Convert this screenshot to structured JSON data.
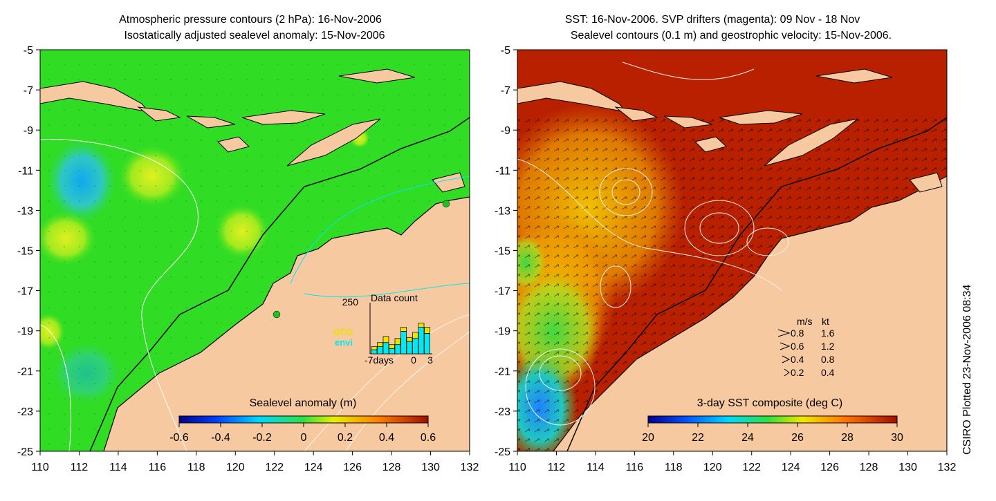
{
  "left_panel": {
    "title_line1": "Atmospheric pressure contours (2 hPa): 16-Nov-2006",
    "title_line2": "Isostatically adjusted sealevel anomaly: 15-Nov-2006",
    "y_ticks": [
      "-5",
      "-7",
      "-9",
      "-11",
      "-13",
      "-15",
      "-17",
      "-19",
      "-21",
      "-23",
      "-25"
    ],
    "x_ticks": [
      "110",
      "112",
      "114",
      "116",
      "118",
      "120",
      "122",
      "124",
      "126",
      "128",
      "130",
      "132"
    ],
    "colorbar": {
      "label": "Sealevel anomaly (m)",
      "ticks": [
        "-0.6",
        "-0.4",
        "-0.2",
        "0",
        "0.2",
        "0.4",
        "0.6"
      ]
    },
    "inset": {
      "title": "Data count",
      "ymax": "250",
      "legend": [
        {
          "label": "GFO",
          "color": "#f0e000"
        },
        {
          "label": "envi",
          "color": "#00e8f0"
        }
      ],
      "x_ticks": [
        "-7days",
        "0",
        "3"
      ],
      "bars": [
        {
          "envi": 20,
          "gfo": 15
        },
        {
          "envi": 35,
          "gfo": 20
        },
        {
          "envi": 55,
          "gfo": 30
        },
        {
          "envi": 25,
          "gfo": 20
        },
        {
          "envi": 45,
          "gfo": 30
        },
        {
          "envi": 110,
          "gfo": 20
        },
        {
          "envi": 60,
          "gfo": 20
        },
        {
          "envi": 75,
          "gfo": 30
        },
        {
          "envi": 130,
          "gfo": 20
        },
        {
          "envi": 100,
          "gfo": 30
        }
      ]
    }
  },
  "right_panel": {
    "title_line1": "SST: 16-Nov-2006. SVP drifters (magenta): 09 Nov - 18 Nov",
    "title_line2": "Sealevel contours (0.1 m) and geostrophic velocity: 15-Nov-2006.",
    "y_ticks": [
      "-5",
      "-7",
      "-9",
      "-11",
      "-13",
      "-15",
      "-17",
      "-19",
      "-21",
      "-23",
      "-25"
    ],
    "x_ticks": [
      "110",
      "112",
      "114",
      "116",
      "118",
      "120",
      "122",
      "124",
      "126",
      "128",
      "130",
      "132"
    ],
    "colorbar": {
      "label": "3-day SST composite (deg C)",
      "ticks": [
        "20",
        "22",
        "24",
        "26",
        "28",
        "30"
      ]
    },
    "speed_legend": {
      "header_ms": "m/s",
      "header_kt": "kt",
      "rows": [
        {
          "ms": "0.8",
          "kt": "1.6"
        },
        {
          "ms": "0.6",
          "kt": "1.2"
        },
        {
          "ms": "0.4",
          "kt": "0.8"
        },
        {
          "ms": "0.2",
          "kt": "0.4"
        }
      ]
    }
  },
  "credit": "CSIRO Plotted 23-Nov-2006 08:34",
  "colors": {
    "land": "#f7c9a0",
    "ocean_green": "#22dd22",
    "ocean_red": "#b01800",
    "coast": "#000000"
  }
}
